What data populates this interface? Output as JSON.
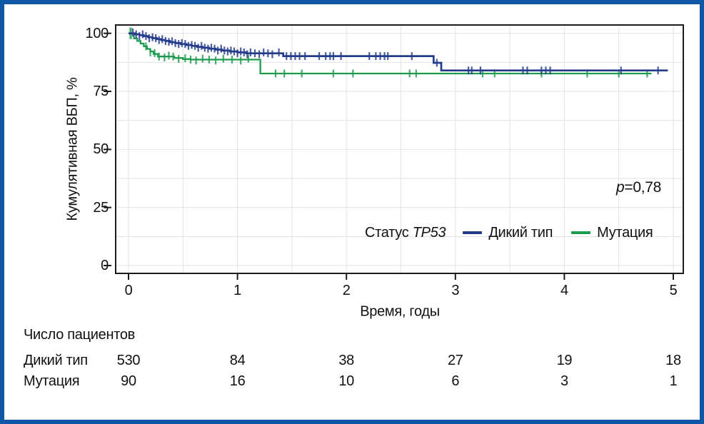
{
  "figure": {
    "border_color": "#0e57a6",
    "background": "#ffffff",
    "frame_color": "#1c1c1c",
    "text_color": "#111111"
  },
  "chart_data": {
    "type": "line",
    "subtype": "kaplan-meier-step",
    "title": "",
    "xlabel": "Время, годы",
    "ylabel": "Кумулятивная ВБП, %",
    "xlim": [
      0,
      5
    ],
    "ylim": [
      0,
      100
    ],
    "xticks": [
      0,
      1,
      2,
      3,
      4,
      5
    ],
    "yticks": [
      100,
      75,
      50,
      25,
      0
    ],
    "grid": {
      "on": true,
      "x_minor_interval": 0.5,
      "y_minor_interval": 12.5,
      "color": "#e3e3e3"
    },
    "annotation": {
      "symbol": "p",
      "text": "=0,78"
    },
    "legend": {
      "title_prefix": "Статус",
      "title_gene": "TP53",
      "position": "inside-bottom-center-right"
    },
    "series": [
      {
        "name": "Дикий тип",
        "color": "#243b8c",
        "steps": [
          [
            0,
            100
          ],
          [
            0.06,
            99.6
          ],
          [
            0.1,
            99.2
          ],
          [
            0.14,
            98.8
          ],
          [
            0.18,
            98.3
          ],
          [
            0.22,
            97.9
          ],
          [
            0.26,
            97.5
          ],
          [
            0.3,
            97.1
          ],
          [
            0.34,
            96.7
          ],
          [
            0.38,
            96.2
          ],
          [
            0.43,
            95.8
          ],
          [
            0.48,
            95.4
          ],
          [
            0.53,
            95.0
          ],
          [
            0.58,
            94.6
          ],
          [
            0.63,
            94.2
          ],
          [
            0.68,
            93.8
          ],
          [
            0.74,
            93.4
          ],
          [
            0.8,
            93.0
          ],
          [
            0.86,
            92.6
          ],
          [
            0.93,
            92.2
          ],
          [
            1.0,
            91.8
          ],
          [
            1.08,
            91.4
          ],
          [
            1.42,
            90.2
          ],
          [
            2.8,
            87.3
          ],
          [
            2.87,
            84.0
          ],
          [
            4.95,
            84.0
          ]
        ],
        "censor_x": [
          0.04,
          0.07,
          0.1,
          0.13,
          0.16,
          0.19,
          0.22,
          0.25,
          0.28,
          0.31,
          0.34,
          0.37,
          0.4,
          0.43,
          0.46,
          0.49,
          0.52,
          0.55,
          0.58,
          0.61,
          0.64,
          0.67,
          0.7,
          0.73,
          0.76,
          0.79,
          0.82,
          0.85,
          0.88,
          0.91,
          0.94,
          0.97,
          1.0,
          1.03,
          1.06,
          1.09,
          1.12,
          1.16,
          1.2,
          1.24,
          1.28,
          1.32,
          1.38,
          1.45,
          1.49,
          1.53,
          1.57,
          1.62,
          1.75,
          1.81,
          1.85,
          1.88,
          1.95,
          2.21,
          2.27,
          2.31,
          2.35,
          2.38,
          2.6,
          2.83,
          3.12,
          3.15,
          3.23,
          3.62,
          3.66,
          3.79,
          3.83,
          3.87,
          4.52,
          4.86
        ]
      },
      {
        "name": "Мутация",
        "color": "#1f9b4f",
        "steps": [
          [
            0,
            100
          ],
          [
            0.05,
            97.8
          ],
          [
            0.08,
            96.7
          ],
          [
            0.11,
            95.6
          ],
          [
            0.14,
            94.4
          ],
          [
            0.17,
            93.3
          ],
          [
            0.2,
            92.2
          ],
          [
            0.23,
            91.1
          ],
          [
            0.27,
            90.0
          ],
          [
            0.42,
            89.4
          ],
          [
            0.5,
            88.9
          ],
          [
            0.57,
            88.7
          ],
          [
            1.21,
            82.7
          ],
          [
            4.8,
            82.7
          ]
        ],
        "censor_x": [
          0.02,
          0.16,
          0.2,
          0.24,
          0.28,
          0.33,
          0.37,
          0.41,
          0.46,
          0.52,
          0.57,
          0.62,
          0.68,
          0.74,
          0.8,
          0.87,
          0.95,
          1.03,
          1.1,
          1.35,
          1.43,
          1.59,
          1.88,
          2.06,
          2.58,
          2.64,
          3.25,
          3.36,
          3.79,
          4.21,
          4.5,
          4.76
        ]
      }
    ]
  },
  "risk_table": {
    "title": "Число пациентов",
    "times": [
      0,
      1,
      2,
      3,
      4,
      5
    ],
    "rows": [
      {
        "label": "Дикий тип",
        "counts": [
          530,
          84,
          38,
          27,
          19,
          18
        ]
      },
      {
        "label": "Мутация",
        "counts": [
          90,
          16,
          10,
          6,
          3,
          1
        ]
      }
    ]
  }
}
